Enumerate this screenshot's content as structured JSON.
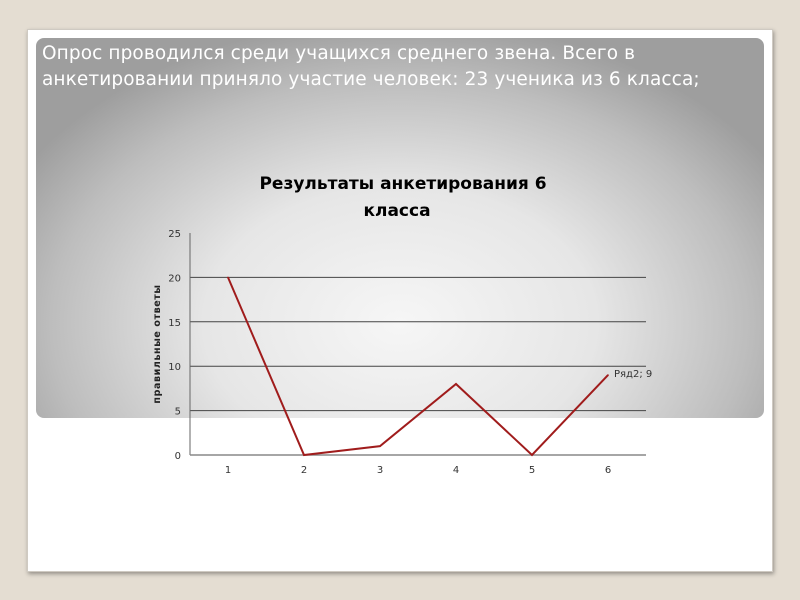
{
  "slide": {
    "intro_text": "Опрос проводился среди учащихся среднего звена. Всего в анкетировании приняло участие человек: 23 ученика из 6 класса;"
  },
  "chart_data": {
    "type": "line",
    "title_lines": [
      "Результаты анкетирования 6",
      "класса"
    ],
    "ylabel": "правильные ответы",
    "xlabel": "",
    "categories": [
      "1",
      "2",
      "3",
      "4",
      "5",
      "6"
    ],
    "series": [
      {
        "values": [
          20,
          0,
          1,
          8,
          0,
          9
        ],
        "color": "#a01c1c"
      }
    ],
    "data_label": "Ряд2; 9",
    "ylim": [
      0,
      25
    ],
    "yticks": [
      "0",
      "5",
      "10",
      "15",
      "20",
      "25"
    ],
    "grid": true,
    "legend": "none"
  }
}
